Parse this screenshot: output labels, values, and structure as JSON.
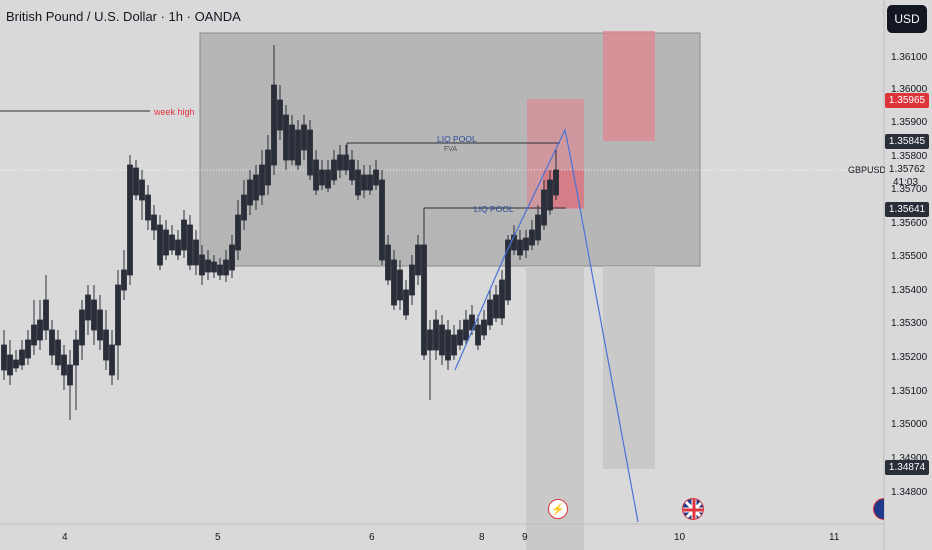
{
  "header": {
    "symbol_title": "British Pound / U.S. Dollar · 1h · OANDA",
    "currency_button": "USD"
  },
  "price_axis": {
    "labels": [
      "1.36100",
      "1.36000",
      "1.35900",
      "1.35800",
      "1.35700",
      "1.35600",
      "1.35500",
      "1.35400",
      "1.35300",
      "1.35200",
      "1.35100",
      "1.35000",
      "1.34900",
      "1.34800"
    ],
    "tags": {
      "red_tag": "1.35965",
      "dark_tag_1": "1.35845",
      "current_price": "1.35762",
      "countdown": "41:03",
      "dark_tag_2": "1.35641",
      "dark_tag_3": "1.34874"
    },
    "symbol_label": "GBPUSD"
  },
  "time_axis": {
    "labels": [
      "4",
      "5",
      "6",
      "8",
      "9",
      "10",
      "11"
    ]
  },
  "annotations": {
    "week_high": "week high",
    "liq_pool_upper": "LIQ POOL",
    "fva": "FVA",
    "liq_pool_lower": "LIQ POOL"
  },
  "colors": {
    "background": "#d9d9d9",
    "gray_zone": "#a9a9a9",
    "red_zone": "#e0848f",
    "projection_line": "#4a72d8",
    "candle_up": "#ffffff",
    "candle_down": "#2a2e39",
    "week_high_text": "#e0343c"
  },
  "icons": {
    "event_1": "lightning-icon",
    "event_2": "uk-flag-icon"
  }
}
